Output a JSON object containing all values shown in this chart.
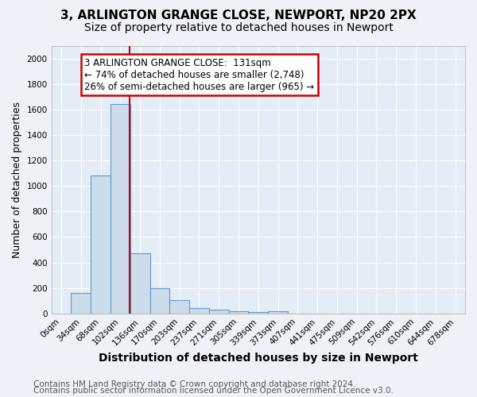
{
  "title1": "3, ARLINGTON GRANGE CLOSE, NEWPORT, NP20 2PX",
  "title2": "Size of property relative to detached houses in Newport",
  "xlabel": "Distribution of detached houses by size in Newport",
  "ylabel": "Number of detached properties",
  "bar_labels": [
    "0sqm",
    "34sqm",
    "68sqm",
    "102sqm",
    "136sqm",
    "170sqm",
    "203sqm",
    "237sqm",
    "271sqm",
    "305sqm",
    "339sqm",
    "373sqm",
    "407sqm",
    "441sqm",
    "475sqm",
    "509sqm",
    "542sqm",
    "576sqm",
    "610sqm",
    "644sqm",
    "678sqm"
  ],
  "bar_values": [
    0,
    160,
    1080,
    1640,
    470,
    200,
    105,
    45,
    30,
    15,
    10,
    15,
    0,
    0,
    0,
    0,
    0,
    0,
    0,
    0,
    0
  ],
  "bar_color": "#ccdce8",
  "bar_edge_color": "#5b9bd5",
  "red_line_x": 3.47,
  "annotation_line1": "3 ARLINGTON GRANGE CLOSE:  131sqm",
  "annotation_line2": "← 74% of detached houses are smaller (2,748)",
  "annotation_line3": "26% of semi-detached houses are larger (965) →",
  "annotation_box_color": "#ffffff",
  "annotation_border_color": "#cc0000",
  "ylim": [
    0,
    2100
  ],
  "yticks": [
    0,
    200,
    400,
    600,
    800,
    1000,
    1200,
    1400,
    1600,
    1800,
    2000
  ],
  "footer1": "Contains HM Land Registry data © Crown copyright and database right 2024.",
  "footer2": "Contains public sector information licensed under the Open Government Licence v3.0.",
  "background_color": "#eef2f7",
  "plot_bg_color": "#e4edf5",
  "grid_color": "#ffffff",
  "title1_fontsize": 11,
  "title2_fontsize": 10,
  "xlabel_fontsize": 10,
  "ylabel_fontsize": 9,
  "tick_fontsize": 7.5,
  "annotation_fontsize": 8.5,
  "footer_fontsize": 7.5
}
